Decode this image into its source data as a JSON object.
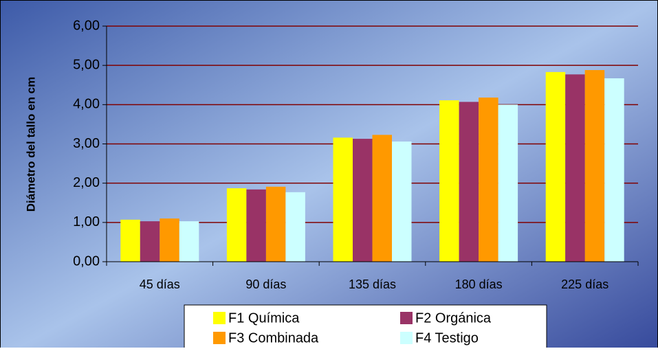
{
  "chart_data": {
    "type": "bar",
    "y_label": "Diámetro del tallo en cm",
    "categories": [
      "45 días",
      "90 días",
      "135 días",
      "180 días",
      "225 días"
    ],
    "series": [
      {
        "name": "F1 Química",
        "color": "#ffff00",
        "values": [
          1.07,
          1.87,
          3.16,
          4.11,
          4.83
        ]
      },
      {
        "name": "F2 Orgánica",
        "color": "#993366",
        "values": [
          1.03,
          1.84,
          3.13,
          4.07,
          4.77
        ]
      },
      {
        "name": "F3 Combinada",
        "color": "#ff9900",
        "values": [
          1.1,
          1.91,
          3.23,
          4.18,
          4.88
        ]
      },
      {
        "name": "F4 Testigo",
        "color": "#ccffff",
        "values": [
          1.03,
          1.77,
          3.06,
          4.0,
          4.67
        ]
      }
    ],
    "ylim": [
      0,
      6
    ],
    "yticks": [
      {
        "value": 0,
        "label": "0,00"
      },
      {
        "value": 1,
        "label": "1,00"
      },
      {
        "value": 2,
        "label": "2,00"
      },
      {
        "value": 3,
        "label": "3,00"
      },
      {
        "value": 4,
        "label": "4,00"
      },
      {
        "value": 5,
        "label": "5,00"
      },
      {
        "value": 6,
        "label": "6,00"
      }
    ],
    "grid": true,
    "grid_color": "#800000",
    "legend": "bottom"
  }
}
